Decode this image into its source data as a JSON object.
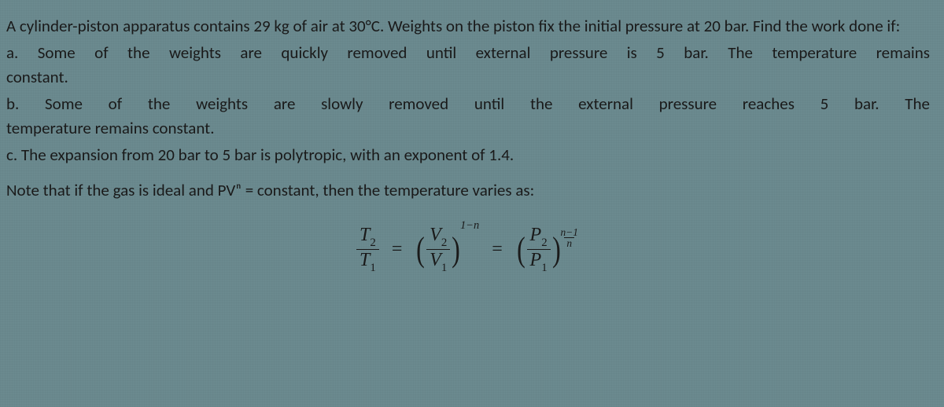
{
  "text_color": "#1a1a1a",
  "background_color": "#6b8a8f",
  "base_fontsize": 21,
  "font_family_body": "Calibri",
  "font_family_math": "Times New Roman",
  "intro": "A cylinder-piston apparatus contains 29 kg of air at 30°C. Weights on the piston fix the initial pressure at 20 bar. Find the work done if:",
  "a_line1": "a. Some of the weights are quickly removed until external pressure is 5 bar. The temperature remains",
  "a_line2": "constant.",
  "b_line1": "b. Some of the weights are slowly removed until the external pressure reaches 5 bar. The",
  "b_line2": "temperature remains constant.",
  "c": "c. The expansion from 20 bar to 5 bar is polytropic, with an exponent of 1.4.",
  "note": "Note that if the gas is ideal and PVⁿ = constant, then the temperature varies as:",
  "equation": {
    "lhs": {
      "num": "T",
      "num_sub": "2",
      "den": "T",
      "den_sub": "1"
    },
    "op": "=",
    "mid": {
      "num": "V",
      "num_sub": "2",
      "den": "V",
      "den_sub": "1",
      "exponent": "1−n"
    },
    "op2": "=",
    "rhs": {
      "num": "P",
      "num_sub": "2",
      "den": "P",
      "den_sub": "1",
      "exp_num": "n−1",
      "exp_den": "n"
    }
  }
}
